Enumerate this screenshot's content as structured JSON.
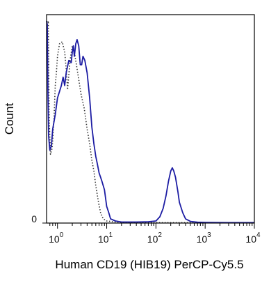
{
  "chart_data": {
    "type": "line",
    "title": "",
    "xlabel": "Human CD19 (HIB19) PerCP-Cy5.5",
    "ylabel": "Count",
    "x_scale": "log",
    "xlim": [
      0.6,
      10000
    ],
    "ylim": [
      0,
      1.0
    ],
    "grid": false,
    "legend": "none",
    "x_ticks": [
      {
        "value": 1,
        "base": "10",
        "exp": "0"
      },
      {
        "value": 10,
        "base": "10",
        "exp": "1"
      },
      {
        "value": 100,
        "base": "10",
        "exp": "2"
      },
      {
        "value": 1000,
        "base": "10",
        "exp": "3"
      },
      {
        "value": 10000,
        "base": "10",
        "exp": "4"
      }
    ],
    "y_ticks": [
      {
        "value": 0,
        "label": "0"
      }
    ],
    "series": [
      {
        "style": "dotted",
        "color": "#333333",
        "points": [
          [
            0.62,
            0.95
          ],
          [
            0.65,
            0.97
          ],
          [
            0.68,
            0.5
          ],
          [
            0.72,
            0.33
          ],
          [
            0.78,
            0.36
          ],
          [
            0.85,
            0.5
          ],
          [
            0.9,
            0.66
          ],
          [
            0.95,
            0.72
          ],
          [
            1.0,
            0.8
          ],
          [
            1.1,
            0.86
          ],
          [
            1.25,
            0.87
          ],
          [
            1.4,
            0.82
          ],
          [
            1.5,
            0.74
          ],
          [
            1.6,
            0.64
          ],
          [
            1.8,
            0.78
          ],
          [
            2.0,
            0.85
          ],
          [
            2.2,
            0.82
          ],
          [
            2.5,
            0.74
          ],
          [
            3.0,
            0.62
          ],
          [
            3.5,
            0.55
          ],
          [
            4.0,
            0.45
          ],
          [
            4.5,
            0.38
          ],
          [
            5.0,
            0.3
          ],
          [
            5.5,
            0.25
          ],
          [
            6.0,
            0.18
          ],
          [
            6.8,
            0.1
          ],
          [
            7.5,
            0.05
          ],
          [
            8.5,
            0.02
          ],
          [
            10,
            0.01
          ],
          [
            15,
            0.005
          ],
          [
            30,
            0.003
          ],
          [
            100,
            0.002
          ],
          [
            10000,
            0.002
          ]
        ]
      },
      {
        "style": "solid",
        "color": "#1c1ca3",
        "points": [
          [
            0.6,
            0.97
          ],
          [
            0.62,
            0.95
          ],
          [
            0.64,
            0.62
          ],
          [
            0.66,
            0.42
          ],
          [
            0.7,
            0.35
          ],
          [
            0.75,
            0.37
          ],
          [
            0.8,
            0.45
          ],
          [
            0.9,
            0.52
          ],
          [
            1.0,
            0.6
          ],
          [
            1.2,
            0.66
          ],
          [
            1.3,
            0.7
          ],
          [
            1.4,
            0.66
          ],
          [
            1.5,
            0.72
          ],
          [
            1.7,
            0.78
          ],
          [
            1.9,
            0.77
          ],
          [
            2.0,
            0.82
          ],
          [
            2.1,
            0.85
          ],
          [
            2.2,
            0.8
          ],
          [
            2.35,
            0.86
          ],
          [
            2.5,
            0.88
          ],
          [
            2.7,
            0.85
          ],
          [
            2.9,
            0.76
          ],
          [
            3.1,
            0.76
          ],
          [
            3.3,
            0.8
          ],
          [
            3.6,
            0.78
          ],
          [
            4.0,
            0.72
          ],
          [
            4.5,
            0.6
          ],
          [
            5.0,
            0.46
          ],
          [
            5.5,
            0.38
          ],
          [
            6.0,
            0.32
          ],
          [
            6.5,
            0.28
          ],
          [
            7.0,
            0.24
          ],
          [
            7.5,
            0.22
          ],
          [
            8.0,
            0.2
          ],
          [
            9.0,
            0.16
          ],
          [
            10,
            0.08
          ],
          [
            11,
            0.05
          ],
          [
            12,
            0.02
          ],
          [
            15,
            0.01
          ],
          [
            20,
            0.005
          ],
          [
            40,
            0.005
          ],
          [
            70,
            0.006
          ],
          [
            100,
            0.01
          ],
          [
            120,
            0.03
          ],
          [
            140,
            0.07
          ],
          [
            160,
            0.13
          ],
          [
            180,
            0.2
          ],
          [
            200,
            0.25
          ],
          [
            215,
            0.265
          ],
          [
            230,
            0.25
          ],
          [
            250,
            0.22
          ],
          [
            280,
            0.15
          ],
          [
            300,
            0.1
          ],
          [
            350,
            0.05
          ],
          [
            400,
            0.02
          ],
          [
            500,
            0.008
          ],
          [
            700,
            0.004
          ],
          [
            1000,
            0.003
          ],
          [
            3000,
            0.002
          ],
          [
            10000,
            0.002
          ]
        ]
      }
    ]
  }
}
